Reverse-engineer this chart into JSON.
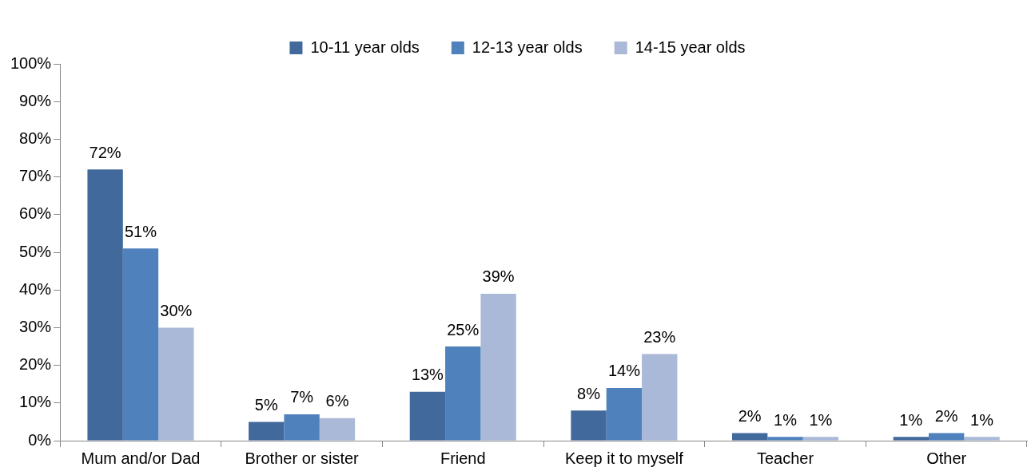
{
  "chart_data": {
    "type": "bar",
    "categories": [
      "Mum and/or Dad",
      "Brother or sister",
      "Friend",
      "Keep it to myself",
      "Teacher",
      "Other"
    ],
    "series": [
      {
        "name": "10-11 year olds",
        "color": "#41699b",
        "values": [
          72,
          5,
          13,
          8,
          2,
          1
        ],
        "value_labels": [
          "72%",
          "5%",
          "13%",
          "8%",
          "2%",
          "1%"
        ]
      },
      {
        "name": "12-13 year olds",
        "color": "#4f81bd",
        "values": [
          51,
          7,
          25,
          14,
          1,
          2
        ],
        "value_labels": [
          "51%",
          "7%",
          "25%",
          "14%",
          "1%",
          "2%"
        ]
      },
      {
        "name": "14-15 year olds",
        "color": "#aab9d8",
        "values": [
          30,
          6,
          39,
          23,
          1,
          1
        ],
        "value_labels": [
          "30%",
          "6%",
          "39%",
          "23%",
          "1%",
          "1%"
        ]
      }
    ],
    "ylim": [
      0,
      100
    ],
    "yticks": [
      {
        "value": 0,
        "label": "0%"
      },
      {
        "value": 10,
        "label": "10%"
      },
      {
        "value": 20,
        "label": "20%"
      },
      {
        "value": 30,
        "label": "30%"
      },
      {
        "value": 40,
        "label": "40%"
      },
      {
        "value": 50,
        "label": "50%"
      },
      {
        "value": 60,
        "label": "60%"
      },
      {
        "value": 70,
        "label": "70%"
      },
      {
        "value": 80,
        "label": "80%"
      },
      {
        "value": 90,
        "label": "90%"
      },
      {
        "value": 100,
        "label": "100%"
      }
    ],
    "grid": false,
    "legend": "top"
  }
}
